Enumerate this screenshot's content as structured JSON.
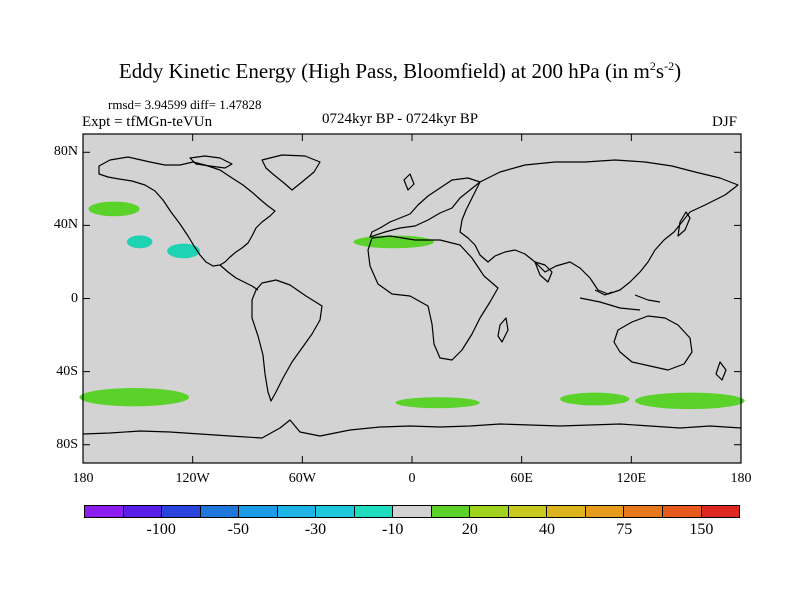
{
  "title": "Eddy Kinetic Energy (High Pass, Bloomfield) at 200 hPa (in m",
  "title_unit_m_exp": "2",
  "title_unit_s": "s",
  "title_unit_s_exp": "-2",
  "title_close": ")",
  "stats": "rmsd= 3.94599 diff= 1.47828",
  "experiment": "Expt = tfMGn-teVUn",
  "period": "0724kyr BP - 0724kyr BP",
  "season": "DJF",
  "map": {
    "background_color": "#d3d3d3",
    "lon_range": [
      -180,
      180
    ],
    "lat_range": [
      -90,
      90
    ],
    "x_ticks": [
      {
        "lon": -180,
        "label": "180"
      },
      {
        "lon": -120,
        "label": "120W"
      },
      {
        "lon": -60,
        "label": "60W"
      },
      {
        "lon": 0,
        "label": "0"
      },
      {
        "lon": 60,
        "label": "60E"
      },
      {
        "lon": 120,
        "label": "120E"
      },
      {
        "lon": 180,
        "label": "180"
      }
    ],
    "y_ticks": [
      {
        "lat": 80,
        "label": "80N"
      },
      {
        "lat": 40,
        "label": "40N"
      },
      {
        "lat": 0,
        "label": "0"
      },
      {
        "lat": -40,
        "label": "40S"
      },
      {
        "lat": -80,
        "label": "80S"
      }
    ],
    "anomaly_regions": [
      {
        "name": "north-pacific-west",
        "color": "#5ad22a",
        "lon_center": -163,
        "lat_center": 49,
        "lon_half": 14,
        "lat_half": 4
      },
      {
        "name": "north-pacific-cyan-small",
        "color": "#1ed2b4",
        "lon_center": -149,
        "lat_center": 31,
        "lon_half": 7,
        "lat_half": 3.5
      },
      {
        "name": "north-pacific-cyan",
        "color": "#1ed2b4",
        "lon_center": -125,
        "lat_center": 26,
        "lon_half": 9,
        "lat_half": 4
      },
      {
        "name": "north-atlantic",
        "color": "#5ad22a",
        "lon_center": -10,
        "lat_center": 31,
        "lon_half": 22,
        "lat_half": 3.5
      },
      {
        "name": "south-pacific",
        "color": "#5ad22a",
        "lon_center": -152,
        "lat_center": -54,
        "lon_half": 30,
        "lat_half": 5
      },
      {
        "name": "south-atlantic",
        "color": "#5ad22a",
        "lon_center": 14,
        "lat_center": -57,
        "lon_half": 23,
        "lat_half": 3
      },
      {
        "name": "south-indian",
        "color": "#5ad22a",
        "lon_center": 100,
        "lat_center": -55,
        "lon_half": 19,
        "lat_half": 3.5
      },
      {
        "name": "south-pacific-east",
        "color": "#5ad22a",
        "lon_center": 152,
        "lat_center": -56,
        "lon_half": 30,
        "lat_half": 4.5
      }
    ]
  },
  "colorbar": {
    "colors": [
      "#8c1ef0",
      "#5a1ee6",
      "#2846dc",
      "#1e78dc",
      "#1e9be6",
      "#1eb4e6",
      "#1ec8dc",
      "#1edcbe",
      "#d3d3d3",
      "#5ad22a",
      "#a0d21e",
      "#c8c81e",
      "#dcb41e",
      "#e69b1e",
      "#e6781e",
      "#e65a1e",
      "#dc281e"
    ],
    "labels": [
      {
        "text": "-100",
        "index": 2
      },
      {
        "text": "-50",
        "index": 4
      },
      {
        "text": "-30",
        "index": 6
      },
      {
        "text": "-10",
        "index": 8
      },
      {
        "text": "20",
        "index": 10
      },
      {
        "text": "40",
        "index": 12
      },
      {
        "text": "75",
        "index": 14
      },
      {
        "text": "150",
        "index": 16
      }
    ]
  }
}
